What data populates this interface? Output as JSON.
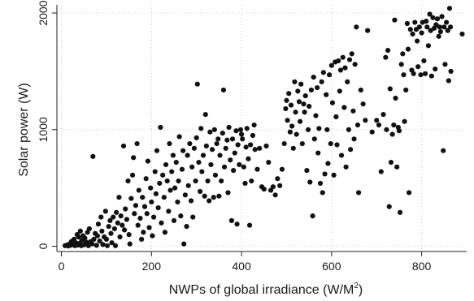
{
  "chart_data": {
    "type": "scatter",
    "title": "",
    "xlabel": "NWPs of global irradiance (W/M",
    "xlabel_sup": "2",
    "xlabel_close": ")",
    "ylabel": "Solar power (W)",
    "xlim": [
      -10,
      900
    ],
    "ylim": [
      -45,
      2070
    ],
    "x_ticks": [
      0,
      200,
      400,
      600,
      800
    ],
    "x_tick_labels": [
      "0",
      "200",
      "400",
      "600",
      "800"
    ],
    "y_ticks": [
      0,
      1000,
      2000
    ],
    "y_tick_labels": [
      "0",
      "1000",
      "2000"
    ],
    "grid": true,
    "grid_style": "dotted",
    "marker_color": "#111111",
    "points": [
      [
        8,
        5
      ],
      [
        12,
        10
      ],
      [
        15,
        2
      ],
      [
        18,
        20
      ],
      [
        20,
        8
      ],
      [
        22,
        40
      ],
      [
        25,
        15
      ],
      [
        28,
        60
      ],
      [
        30,
        5
      ],
      [
        32,
        30
      ],
      [
        35,
        100
      ],
      [
        36,
        10
      ],
      [
        38,
        80
      ],
      [
        40,
        25
      ],
      [
        42,
        130
      ],
      [
        44,
        5
      ],
      [
        45,
        50
      ],
      [
        48,
        90
      ],
      [
        50,
        12
      ],
      [
        52,
        70
      ],
      [
        55,
        35
      ],
      [
        58,
        120
      ],
      [
        60,
        5
      ],
      [
        62,
        150
      ],
      [
        65,
        40
      ],
      [
        68,
        20
      ],
      [
        70,
        770
      ],
      [
        72,
        60
      ],
      [
        75,
        110
      ],
      [
        78,
        8
      ],
      [
        80,
        90
      ],
      [
        82,
        190
      ],
      [
        85,
        45
      ],
      [
        88,
        250
      ],
      [
        90,
        130
      ],
      [
        92,
        15
      ],
      [
        95,
        80
      ],
      [
        98,
        300
      ],
      [
        100,
        60
      ],
      [
        102,
        5
      ],
      [
        105,
        170
      ],
      [
        108,
        220
      ],
      [
        110,
        110
      ],
      [
        112,
        30
      ],
      [
        115,
        250
      ],
      [
        118,
        150
      ],
      [
        120,
        5
      ],
      [
        122,
        290
      ],
      [
        125,
        200
      ],
      [
        128,
        420
      ],
      [
        130,
        80
      ],
      [
        132,
        260
      ],
      [
        135,
        180
      ],
      [
        138,
        860
      ],
      [
        140,
        140
      ],
      [
        142,
        320
      ],
      [
        145,
        230
      ],
      [
        148,
        560
      ],
      [
        150,
        100
      ],
      [
        152,
        20
      ],
      [
        155,
        410
      ],
      [
        158,
        610
      ],
      [
        160,
        760
      ],
      [
        162,
        280
      ],
      [
        165,
        350
      ],
      [
        168,
        880
      ],
      [
        170,
        180
      ],
      [
        172,
        480
      ],
      [
        175,
        240
      ],
      [
        178,
        60
      ],
      [
        180,
        420
      ],
      [
        182,
        120
      ],
      [
        185,
        340
      ],
      [
        188,
        580
      ],
      [
        190,
        280
      ],
      [
        192,
        730
      ],
      [
        195,
        160
      ],
      [
        198,
        500
      ],
      [
        200,
        380
      ],
      [
        202,
        90
      ],
      [
        205,
        250
      ],
      [
        208,
        640
      ],
      [
        210,
        450
      ],
      [
        212,
        820
      ],
      [
        215,
        330
      ],
      [
        218,
        540
      ],
      [
        220,
        1020
      ],
      [
        222,
        200
      ],
      [
        225,
        610
      ],
      [
        228,
        420
      ],
      [
        230,
        120
      ],
      [
        232,
        700
      ],
      [
        235,
        560
      ],
      [
        238,
        300
      ],
      [
        240,
        880
      ],
      [
        242,
        480
      ],
      [
        245,
        640
      ],
      [
        248,
        780
      ],
      [
        250,
        220
      ],
      [
        252,
        500
      ],
      [
        255,
        720
      ],
      [
        258,
        380
      ],
      [
        260,
        560
      ],
      [
        262,
        940
      ],
      [
        265,
        260
      ],
      [
        268,
        660
      ],
      [
        270,
        820
      ],
      [
        272,
        20
      ],
      [
        275,
        440
      ],
      [
        278,
        170
      ],
      [
        280,
        780
      ],
      [
        282,
        520
      ],
      [
        285,
        880
      ],
      [
        288,
        390
      ],
      [
        290,
        680
      ],
      [
        292,
        250
      ],
      [
        295,
        840
      ],
      [
        298,
        560
      ],
      [
        300,
        930
      ],
      [
        302,
        1390
      ],
      [
        305,
        720
      ],
      [
        308,
        470
      ],
      [
        310,
        1010
      ],
      [
        312,
        640
      ],
      [
        315,
        780
      ],
      [
        318,
        430
      ],
      [
        320,
        1130
      ],
      [
        322,
        860
      ],
      [
        325,
        560
      ],
      [
        328,
        390
      ],
      [
        330,
        980
      ],
      [
        332,
        700
      ],
      [
        335,
        830
      ],
      [
        338,
        420
      ],
      [
        340,
        1000
      ],
      [
        342,
        610
      ],
      [
        345,
        880
      ],
      [
        348,
        920
      ],
      [
        350,
        430
      ],
      [
        352,
        780
      ],
      [
        355,
        560
      ],
      [
        358,
        970
      ],
      [
        360,
        1340
      ],
      [
        362,
        680
      ],
      [
        365,
        840
      ],
      [
        368,
        910
      ],
      [
        370,
        460
      ],
      [
        372,
        1020
      ],
      [
        375,
        740
      ],
      [
        378,
        220
      ],
      [
        380,
        920
      ],
      [
        382,
        650
      ],
      [
        385,
        800
      ],
      [
        388,
        990
      ],
      [
        390,
        190
      ],
      [
        392,
        870
      ],
      [
        395,
        700
      ],
      [
        398,
        1000
      ],
      [
        400,
        960
      ],
      [
        402,
        920
      ],
      [
        405,
        680
      ],
      [
        408,
        540
      ],
      [
        410,
        850
      ],
      [
        412,
        1010
      ],
      [
        415,
        750
      ],
      [
        418,
        180
      ],
      [
        420,
        870
      ],
      [
        422,
        560
      ],
      [
        425,
        950
      ],
      [
        428,
        1040
      ],
      [
        430,
        830
      ],
      [
        435,
        660
      ],
      [
        440,
        840
      ],
      [
        445,
        510
      ],
      [
        450,
        490
      ],
      [
        455,
        860
      ],
      [
        460,
        720
      ],
      [
        465,
        480
      ],
      [
        470,
        510
      ],
      [
        475,
        440
      ],
      [
        480,
        580
      ],
      [
        485,
        520
      ],
      [
        490,
        660
      ],
      [
        495,
        880
      ],
      [
        498,
        1180
      ],
      [
        500,
        1250
      ],
      [
        502,
        1080
      ],
      [
        505,
        1310
      ],
      [
        508,
        980
      ],
      [
        510,
        1210
      ],
      [
        512,
        1030
      ],
      [
        515,
        840
      ],
      [
        518,
        1410
      ],
      [
        520,
        1150
      ],
      [
        522,
        960
      ],
      [
        525,
        1330
      ],
      [
        528,
        1240
      ],
      [
        530,
        1070
      ],
      [
        532,
        1390
      ],
      [
        535,
        880
      ],
      [
        538,
        1220
      ],
      [
        540,
        1150
      ],
      [
        542,
        1290
      ],
      [
        545,
        650
      ],
      [
        548,
        1000
      ],
      [
        550,
        1200
      ],
      [
        552,
        550
      ],
      [
        555,
        1340
      ],
      [
        558,
        260
      ],
      [
        560,
        1450
      ],
      [
        562,
        920
      ],
      [
        565,
        1120
      ],
      [
        568,
        1360
      ],
      [
        570,
        800
      ],
      [
        572,
        1010
      ],
      [
        575,
        540
      ],
      [
        578,
        1410
      ],
      [
        580,
        460
      ],
      [
        582,
        1490
      ],
      [
        585,
        620
      ],
      [
        588,
        1300
      ],
      [
        590,
        1000
      ],
      [
        592,
        710
      ],
      [
        595,
        1470
      ],
      [
        598,
        880
      ],
      [
        600,
        1550
      ],
      [
        602,
        1230
      ],
      [
        605,
        610
      ],
      [
        608,
        1580
      ],
      [
        610,
        1110
      ],
      [
        612,
        870
      ],
      [
        615,
        1590
      ],
      [
        618,
        1330
      ],
      [
        620,
        1510
      ],
      [
        622,
        780
      ],
      [
        625,
        1620
      ],
      [
        628,
        1190
      ],
      [
        630,
        1530
      ],
      [
        632,
        680
      ],
      [
        635,
        1410
      ],
      [
        638,
        1000
      ],
      [
        640,
        1600
      ],
      [
        642,
        830
      ],
      [
        645,
        1650
      ],
      [
        648,
        1160
      ],
      [
        650,
        920
      ],
      [
        652,
        1560
      ],
      [
        655,
        1880
      ],
      [
        658,
        1040
      ],
      [
        660,
        460
      ],
      [
        665,
        1340
      ],
      [
        670,
        1220
      ],
      [
        675,
        1080
      ],
      [
        680,
        1850
      ],
      [
        690,
        980
      ],
      [
        700,
        1080
      ],
      [
        705,
        1040
      ],
      [
        710,
        640
      ],
      [
        715,
        1130
      ],
      [
        720,
        1620
      ],
      [
        722,
        1000
      ],
      [
        725,
        1680
      ],
      [
        728,
        340
      ],
      [
        730,
        1350
      ],
      [
        732,
        720
      ],
      [
        735,
        960
      ],
      [
        738,
        1040
      ],
      [
        740,
        1940
      ],
      [
        742,
        1270
      ],
      [
        745,
        680
      ],
      [
        748,
        1020
      ],
      [
        750,
        990
      ],
      [
        752,
        290
      ],
      [
        755,
        1560
      ],
      [
        758,
        1650
      ],
      [
        760,
        1470
      ],
      [
        762,
        1070
      ],
      [
        765,
        1340
      ],
      [
        768,
        1910
      ],
      [
        770,
        1690
      ],
      [
        772,
        460
      ],
      [
        775,
        1860
      ],
      [
        778,
        1510
      ],
      [
        780,
        1820
      ],
      [
        782,
        1480
      ],
      [
        785,
        1920
      ],
      [
        788,
        1860
      ],
      [
        790,
        1760
      ],
      [
        792,
        1540
      ],
      [
        795,
        1880
      ],
      [
        798,
        1470
      ],
      [
        800,
        1830
      ],
      [
        802,
        1920
      ],
      [
        805,
        1590
      ],
      [
        808,
        1480
      ],
      [
        810,
        1930
      ],
      [
        812,
        1880
      ],
      [
        815,
        1720
      ],
      [
        818,
        1990
      ],
      [
        820,
        1850
      ],
      [
        822,
        1460
      ],
      [
        825,
        1960
      ],
      [
        828,
        1870
      ],
      [
        830,
        1520
      ],
      [
        832,
        1900
      ],
      [
        835,
        1950
      ],
      [
        838,
        1800
      ],
      [
        840,
        1880
      ],
      [
        842,
        1840
      ],
      [
        845,
        1970
      ],
      [
        848,
        820
      ],
      [
        850,
        1880
      ],
      [
        852,
        1560
      ],
      [
        855,
        1920
      ],
      [
        858,
        1850
      ],
      [
        860,
        1420
      ],
      [
        862,
        2040
      ],
      [
        864,
        1880
      ],
      [
        865,
        1500
      ],
      [
        890,
        1820
      ]
    ]
  }
}
